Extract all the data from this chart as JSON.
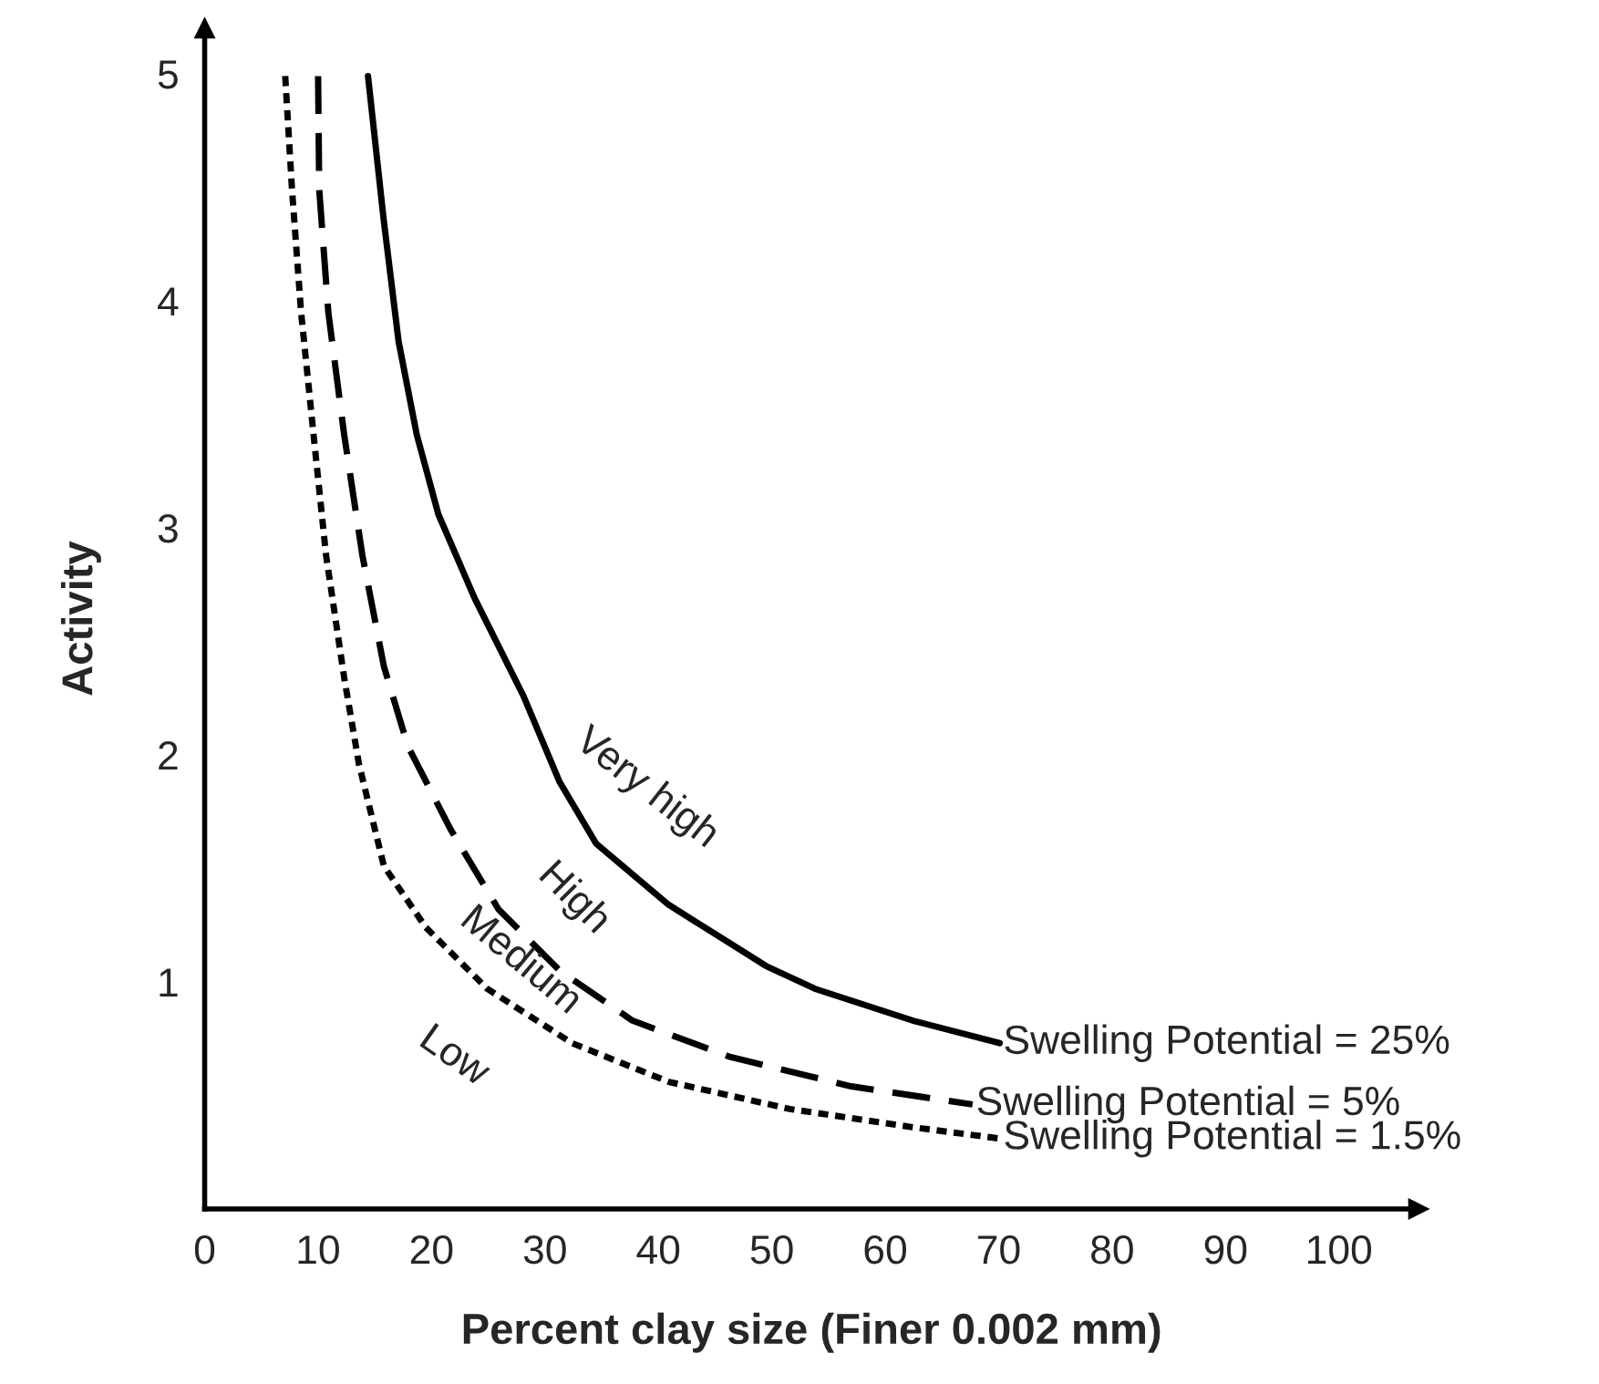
{
  "chart_data": {
    "type": "line",
    "xlabel": "Percent clay size (Finer 0.002 mm)",
    "ylabel": "Activity",
    "xlim": [
      0,
      107
    ],
    "ylim": [
      0,
      5.2
    ],
    "xticks": [
      0,
      10,
      20,
      30,
      40,
      50,
      60,
      70,
      80,
      90,
      100
    ],
    "yticks": [
      1,
      2,
      3,
      4,
      5
    ],
    "series": [
      {
        "name": "Swelling Potential = 25%",
        "color": "#000000",
        "line_style": "solid",
        "x": [
          14.4,
          15.8,
          17.1,
          18.7,
          20.6,
          23.8,
          28.1,
          31.3,
          34.5,
          40.9,
          49.5,
          53.8,
          62.4,
          70.1
        ],
        "values": [
          4.99,
          4.35,
          3.82,
          3.41,
          3.06,
          2.69,
          2.26,
          1.88,
          1.61,
          1.34,
          1.07,
          0.97,
          0.83,
          0.73
        ]
      },
      {
        "name": "Swelling Potential = 5%",
        "color": "#000000",
        "line_style": "dashed",
        "x": [
          10.0,
          10.1,
          10.9,
          12.3,
          13.9,
          15.8,
          17.9,
          21.7,
          25.9,
          31.3,
          37.7,
          46.3,
          57.0,
          67.7
        ],
        "values": [
          4.99,
          4.49,
          3.95,
          3.41,
          2.88,
          2.39,
          2.04,
          1.67,
          1.32,
          1.05,
          0.83,
          0.67,
          0.54,
          0.46
        ]
      },
      {
        "name": "Swelling Potential = 1.5%",
        "color": "#000000",
        "line_style": "dotted",
        "x": [
          7.1,
          7.7,
          8.5,
          9.6,
          10.7,
          12.3,
          13.6,
          15.8,
          19.5,
          24.9,
          32.4,
          40.9,
          51.6,
          62.4,
          70.1
        ],
        "values": [
          4.99,
          4.49,
          3.95,
          3.41,
          2.88,
          2.34,
          1.96,
          1.51,
          1.24,
          0.97,
          0.73,
          0.56,
          0.44,
          0.36,
          0.31
        ]
      }
    ],
    "annotations": [
      "Very high",
      "High",
      "Medium",
      "Low"
    ],
    "grid": false,
    "legend": false
  }
}
